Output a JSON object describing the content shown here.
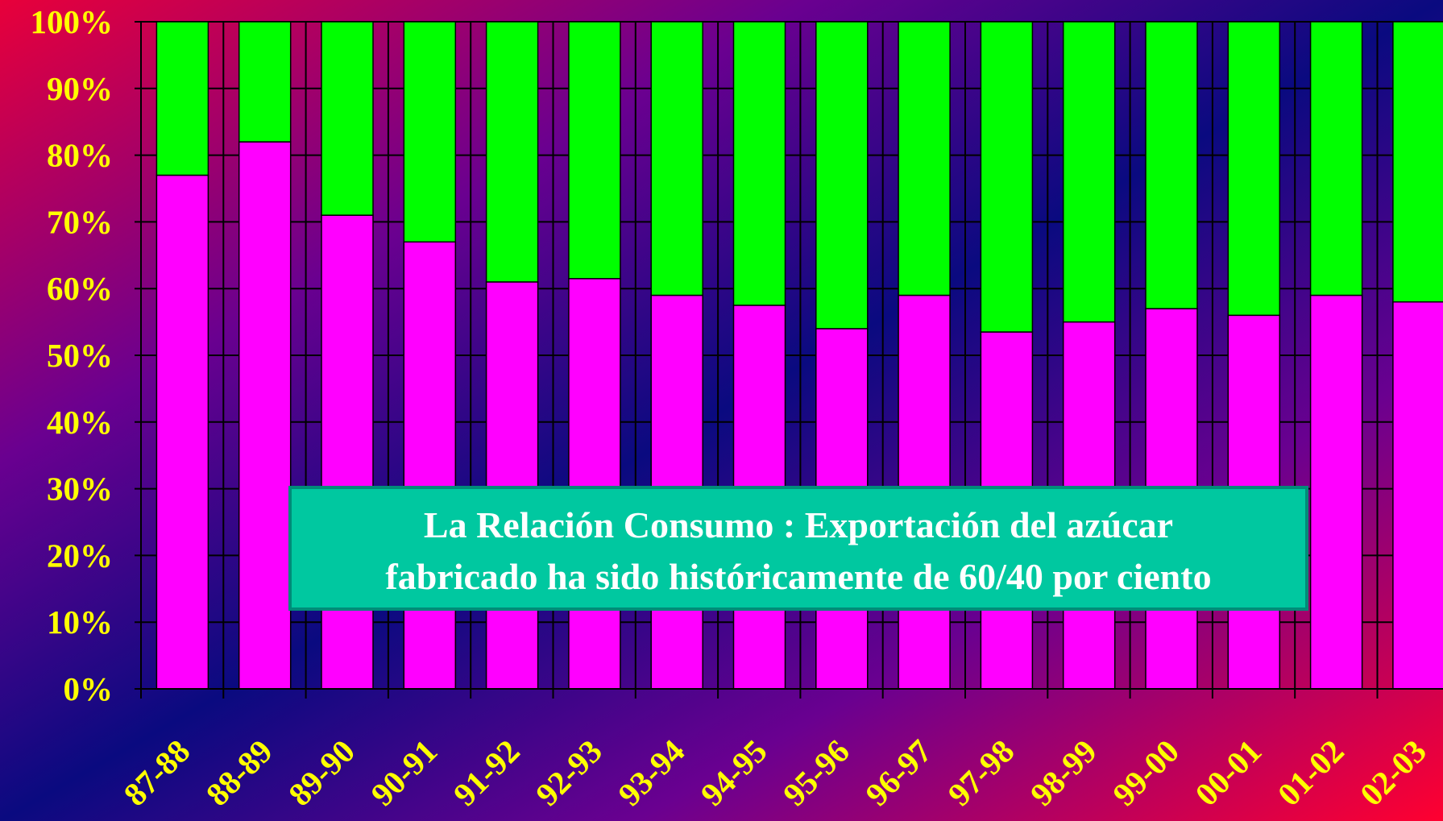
{
  "chart_data": {
    "type": "stacked_bar",
    "categories": [
      "87-88",
      "88-89",
      "89-90",
      "90-91",
      "91-92",
      "92-93",
      "93-94",
      "94-95",
      "95-96",
      "96-97",
      "97-98",
      "98-99",
      "99-00",
      "00-01",
      "01-02",
      "02-03"
    ],
    "series": [
      {
        "color": "#ff00ff",
        "values": [
          77,
          82,
          71,
          67,
          61,
          61.5,
          59,
          57.5,
          54,
          59,
          53.5,
          55,
          57,
          56,
          59,
          58
        ]
      },
      {
        "color": "#00ff00",
        "values": [
          23,
          18,
          29,
          33,
          39,
          38.5,
          41,
          42.5,
          46,
          41,
          46.5,
          45,
          43,
          44,
          41,
          42
        ]
      }
    ],
    "ylim": [
      0,
      100
    ],
    "yticks": [
      {
        "value": 0,
        "label": "0%"
      },
      {
        "value": 10,
        "label": "10%"
      },
      {
        "value": 20,
        "label": "20%"
      },
      {
        "value": 30,
        "label": "30%"
      },
      {
        "value": 40,
        "label": "40%"
      },
      {
        "value": 50,
        "label": "50%"
      },
      {
        "value": 60,
        "label": "60%"
      },
      {
        "value": 70,
        "label": "70%"
      },
      {
        "value": 80,
        "label": "80%"
      },
      {
        "value": 90,
        "label": "90%"
      },
      {
        "value": 100,
        "label": "100%"
      }
    ],
    "grid": true,
    "annotation": [
      "La Relación Consumo : Exportación  del azúcar",
      "fabricado ha sido históricamente de 60/40 por ciento"
    ]
  }
}
